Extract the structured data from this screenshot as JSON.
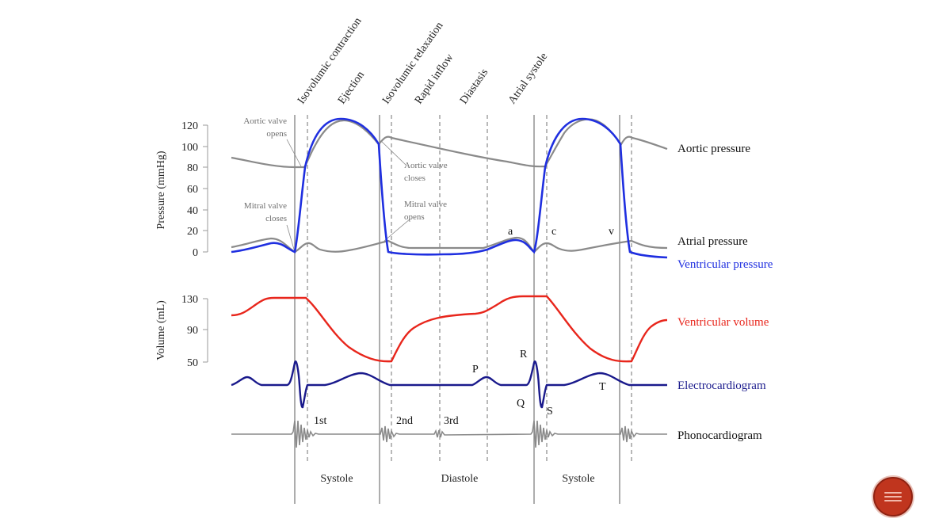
{
  "phases": [
    "Isovolumic contraction",
    "Ejection",
    "Isovolumic relaxation",
    "Rapid inflow",
    "Diastasis",
    "Atrial systole"
  ],
  "pressure_axis": {
    "label": "Pressure (mmHg)",
    "ticks": [
      "120",
      "100",
      "80",
      "60",
      "40",
      "20",
      "0"
    ]
  },
  "volume_axis": {
    "label": "Volume (mL)",
    "ticks": [
      "130",
      "90",
      "50"
    ]
  },
  "annotations": {
    "aortic_opens_1": "Aortic valve",
    "aortic_opens_2": "opens",
    "mitral_closes_1": "Mitral valve",
    "mitral_closes_2": "closes",
    "aortic_closes_1": "Aortic valve",
    "aortic_closes_2": "closes",
    "mitral_opens_1": "Mitral valve",
    "mitral_opens_2": "opens"
  },
  "wave_labels": {
    "a": "a",
    "c": "c",
    "v": "v",
    "P": "P",
    "R": "R",
    "Q": "Q",
    "S": "S",
    "T": "T"
  },
  "heart_sounds": [
    "1st",
    "2nd",
    "3rd"
  ],
  "periods": [
    "Systole",
    "Diastole",
    "Systole"
  ],
  "traces": {
    "aortic": {
      "name": "Aortic pressure",
      "color": "#8a8a8a"
    },
    "atrial": {
      "name": "Atrial pressure",
      "color": "#8a8a8a"
    },
    "ventricular": {
      "name": "Ventricular pressure",
      "color": "#1f2fe0"
    },
    "volume": {
      "name": "Ventricular volume",
      "color": "#e8261c"
    },
    "ecg": {
      "name": "Electrocardiogram",
      "color": "#1a1a8c"
    },
    "pcg": {
      "name": "Phonocardiogram",
      "color": "#8a8a8a"
    }
  }
}
